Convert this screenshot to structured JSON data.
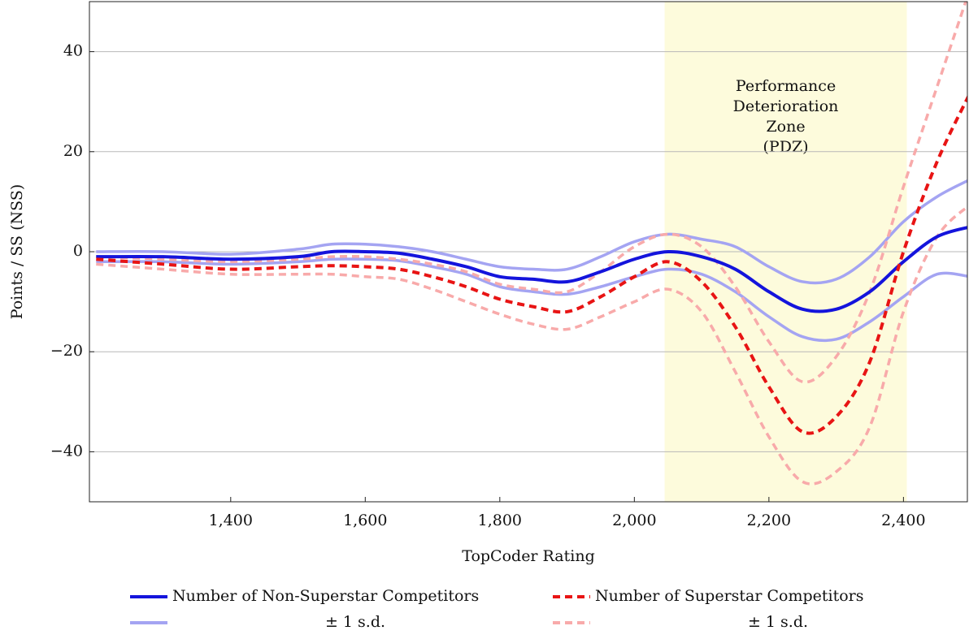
{
  "chart_data": {
    "type": "line",
    "xlabel": "TopCoder Rating",
    "ylabel": "Points / SS (NSS)",
    "annotation": [
      "Performance",
      "Deterioration",
      "Zone",
      "(PDZ)"
    ],
    "shaded_region": {
      "x": [
        2045,
        2405
      ],
      "color": "#fdfbdc"
    },
    "xlim": [
      1190,
      2495
    ],
    "ylim": [
      -50,
      50
    ],
    "xticks": [
      {
        "value": 1400,
        "label": "1,400"
      },
      {
        "value": 1600,
        "label": "1,600"
      },
      {
        "value": 1800,
        "label": "1,800"
      },
      {
        "value": 2000,
        "label": "2,000"
      },
      {
        "value": 2200,
        "label": "2,200"
      },
      {
        "value": 2400,
        "label": "2,400"
      }
    ],
    "yticks": [
      {
        "value": -40,
        "label": "−40"
      },
      {
        "value": -20,
        "label": "−20"
      },
      0,
      20,
      40
    ],
    "grid": true,
    "legend": "bottom",
    "x": [
      1200,
      1300,
      1400,
      1500,
      1550,
      1600,
      1650,
      1700,
      1750,
      1800,
      1850,
      1900,
      1950,
      2000,
      2050,
      2100,
      2150,
      2200,
      2250,
      2300,
      2350,
      2400,
      2450,
      2500
    ],
    "series": [
      {
        "name": "± 1 s.d.",
        "color": "#a4a4f2",
        "dash": false,
        "values": [
          0,
          0,
          -0.5,
          0.5,
          1.5,
          1.5,
          1,
          0,
          -1.5,
          -3,
          -3.5,
          -3.5,
          -1,
          2,
          3.5,
          2.5,
          1,
          -3,
          -6,
          -5.5,
          -1,
          6,
          11,
          14.5
        ]
      },
      {
        "name": "± 1 s.d.",
        "color": "#a4a4f2",
        "dash": false,
        "values": [
          -2,
          -2,
          -2.5,
          -2,
          -1.5,
          -1.5,
          -1.8,
          -3,
          -4.5,
          -7,
          -8,
          -8.5,
          -7,
          -5,
          -3.5,
          -4.5,
          -8,
          -13,
          -17,
          -17.5,
          -14,
          -9,
          -4.5,
          -5
        ]
      },
      {
        "name": "± 1 s.d.",
        "color": "#f8aaaa",
        "dash": true,
        "values": [
          -1,
          -1.5,
          -2,
          -1.5,
          -1,
          -1,
          -1.5,
          -2.5,
          -4,
          -6.5,
          -7.5,
          -8,
          -4,
          1,
          3.5,
          1,
          -7,
          -18,
          -26,
          -21,
          -8,
          13,
          33,
          53
        ]
      },
      {
        "name": "± 1 s.d.",
        "color": "#f8aaaa",
        "dash": true,
        "values": [
          -2.5,
          -3.5,
          -4.5,
          -4.5,
          -4.5,
          -5,
          -5.5,
          -7.5,
          -10,
          -12.5,
          -14.5,
          -15.5,
          -13,
          -10,
          -7.5,
          -12,
          -24,
          -37,
          -46,
          -44,
          -35,
          -12,
          3,
          9.5
        ]
      },
      {
        "name": "Number of Non-Superstar Competitors",
        "color": "#1414dc",
        "dash": false,
        "values": [
          -1,
          -1,
          -1.5,
          -1,
          0,
          0,
          -0.3,
          -1.5,
          -3,
          -5,
          -5.5,
          -6,
          -4,
          -1.5,
          0,
          -1,
          -3.5,
          -8,
          -11.5,
          -11.5,
          -8,
          -2,
          3,
          5
        ]
      },
      {
        "name": "Number of Superstar Competitors",
        "color": "#e81414",
        "dash": true,
        "values": [
          -1.5,
          -2.5,
          -3.5,
          -3,
          -2.8,
          -3,
          -3.5,
          -5,
          -7,
          -9.5,
          -11,
          -12,
          -9,
          -5,
          -2,
          -6,
          -15,
          -27,
          -36,
          -33,
          -22,
          0,
          18,
          32
        ]
      }
    ]
  }
}
